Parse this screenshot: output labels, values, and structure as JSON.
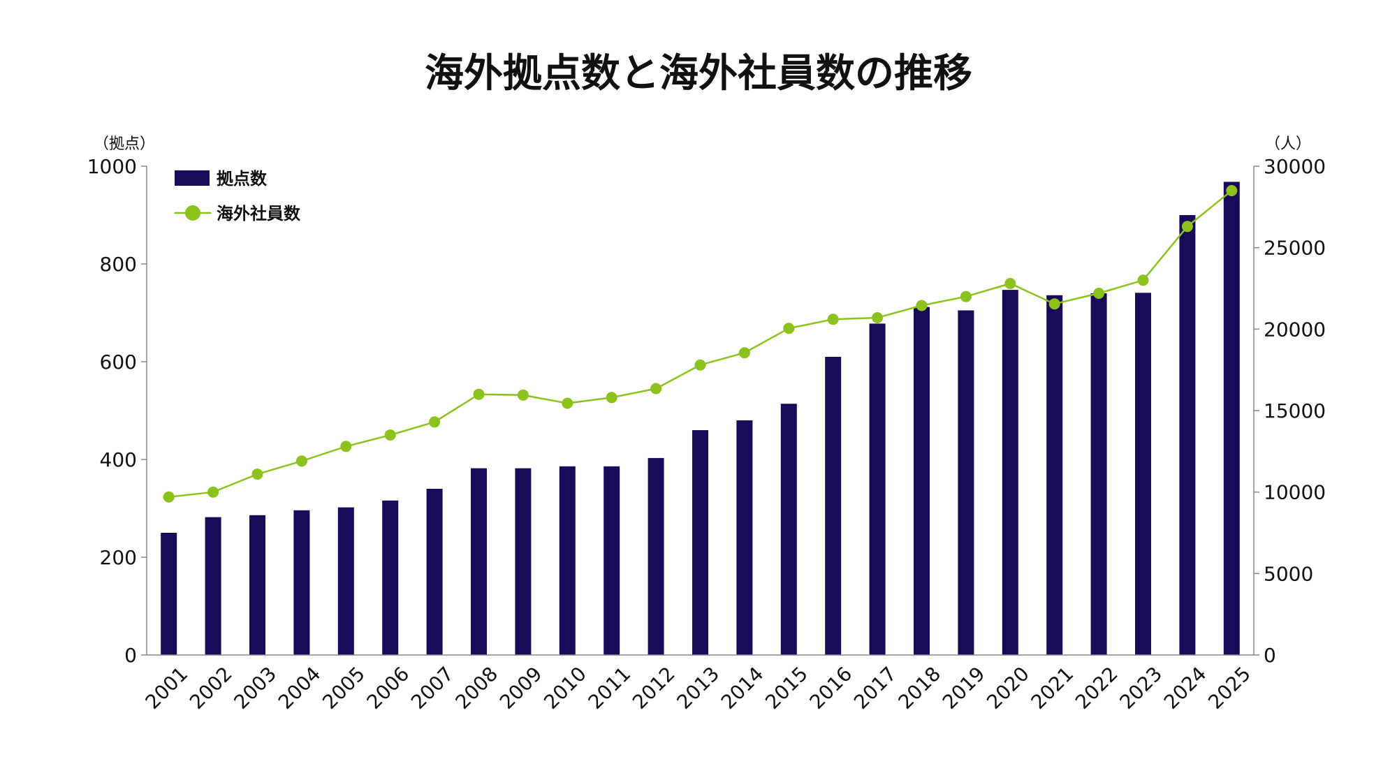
{
  "chart_data": {
    "type": "bar",
    "title": "海外拠点数と海外社員数の推移",
    "left_axis_unit": "（拠点）",
    "right_axis_unit": "（人）",
    "categories": [
      "2001",
      "2002",
      "2003",
      "2004",
      "2005",
      "2006",
      "2007",
      "2008",
      "2009",
      "2010",
      "2011",
      "2012",
      "2013",
      "2014",
      "2015",
      "2016",
      "2017",
      "2018",
      "2019",
      "2020",
      "2021",
      "2022",
      "2023",
      "2024",
      "2025"
    ],
    "y_left": {
      "min": 0,
      "max": 1000,
      "ticks": [
        "0",
        "200",
        "400",
        "600",
        "800",
        "1000"
      ]
    },
    "y_right": {
      "min": 0,
      "max": 30000,
      "ticks": [
        "0",
        "5000",
        "10000",
        "15000",
        "20000",
        "25000",
        "30000"
      ]
    },
    "grid": false,
    "legend_position": "top-left",
    "series": [
      {
        "name": "拠点数",
        "type": "bar",
        "axis": "left",
        "color": "#1a0a5a",
        "values": [
          250,
          282,
          286,
          296,
          302,
          316,
          340,
          382,
          382,
          386,
          386,
          403,
          460,
          480,
          514,
          610,
          678,
          712,
          705,
          747,
          736,
          740,
          741,
          900,
          968
        ]
      },
      {
        "name": "海外社員数",
        "type": "line",
        "axis": "right",
        "color": "#8cc21c",
        "values": [
          9700,
          10000,
          11100,
          11900,
          12800,
          13500,
          14300,
          16000,
          15950,
          15450,
          15800,
          16350,
          17800,
          18550,
          20050,
          20600,
          20700,
          21450,
          22000,
          22800,
          21550,
          22200,
          23000,
          26300,
          28500
        ]
      }
    ]
  }
}
